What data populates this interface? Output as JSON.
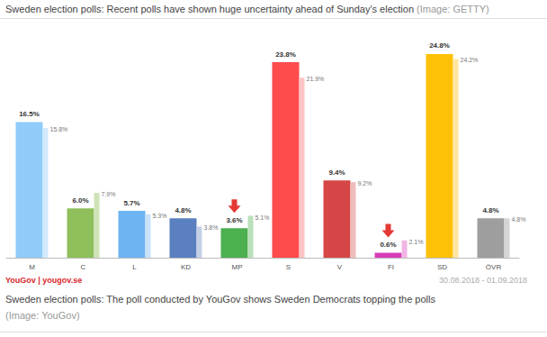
{
  "chart_data": {
    "type": "bar",
    "title": "Sweden election polls: Recent polls have shown huge uncertainty ahead of Sunday's election",
    "title_note": "(Image: GETTY)",
    "source": "YouGov | yougov.se",
    "date": "30.08.2018 - 01.09.2018",
    "caption": "Sweden election polls: The poll conducted by YouGov shows Sweden Democrats topping the polls",
    "caption_note": "(Image: YouGov)",
    "categories": [
      "M",
      "C",
      "L",
      "KD",
      "MP",
      "S",
      "V",
      "FI",
      "SD",
      "ÖVR"
    ],
    "series": [
      {
        "values": [
          16.5,
          6.0,
          5.7,
          4.8,
          3.6,
          23.8,
          9.4,
          0.6,
          24.8,
          4.8
        ],
        "value_labels": [
          "16.5%",
          "6.0%",
          "5.7%",
          "4.8%",
          "3.6%",
          "23.8%",
          "9.4%",
          "0.6%",
          "24.8%",
          "4.8%"
        ],
        "colors": [
          "#90cbf9",
          "#8fbf5a",
          "#6fb4f2",
          "#5a80c0",
          "#4caf50",
          "#ff4b4b",
          "#d64646",
          "#d63cb8",
          "#ffc107",
          "#9e9e9e"
        ]
      },
      {
        "values": [
          15.8,
          7.9,
          5.3,
          3.8,
          5.1,
          21.9,
          9.2,
          2.1,
          24.2,
          4.8
        ],
        "value_labels": [
          "15.8%",
          "7.9%",
          "5.3%",
          "3.8%",
          "5.1%",
          "21.9%",
          "9.2%",
          "2.1%",
          "24.2%",
          "4.8%"
        ],
        "colors": [
          "#d3e9fc",
          "#cfe3b8",
          "#c9e2f9",
          "#c4d0e8",
          "#b9e0bb",
          "#ffc4c4",
          "#efbcbc",
          "#f0b5e4",
          "#ffe6a0",
          "#d6d6d6"
        ]
      }
    ],
    "ylim": [
      0,
      26
    ],
    "data_labels": true,
    "grid": false,
    "tick_labels": "x"
  }
}
